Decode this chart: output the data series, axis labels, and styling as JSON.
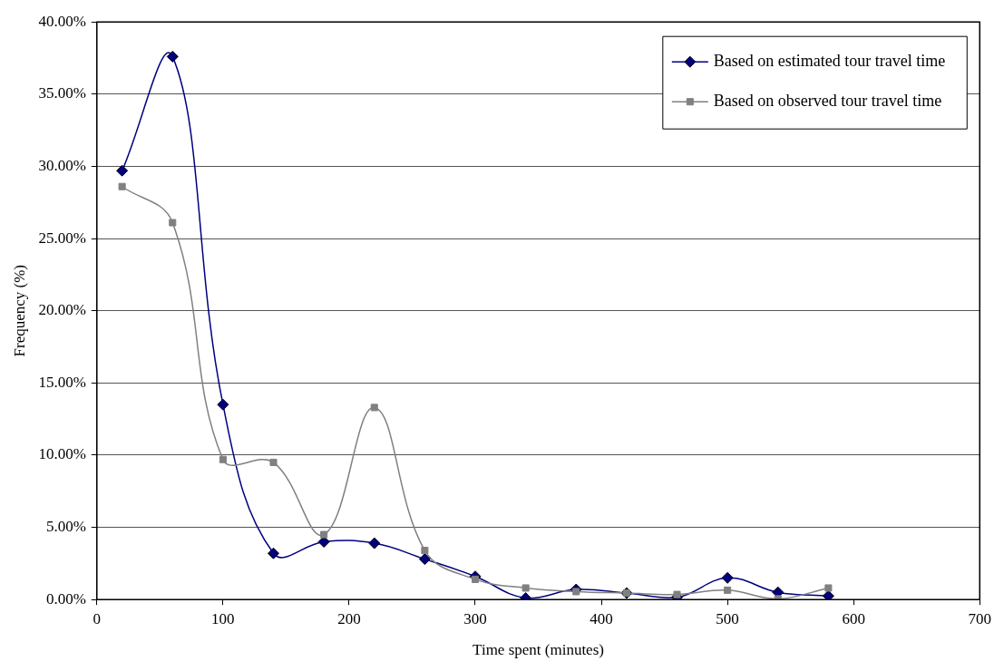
{
  "chart_data": {
    "type": "line",
    "xlabel": "Time spent (minutes)",
    "ylabel": "Frequency (%)",
    "x": [
      20,
      60,
      100,
      140,
      180,
      220,
      260,
      300,
      340,
      380,
      420,
      460,
      500,
      540,
      580
    ],
    "series": [
      {
        "name": "Based on estimated tour travel time",
        "color": "#000080",
        "marker": "diamond",
        "values": [
          29.7,
          37.6,
          13.5,
          3.2,
          4.0,
          3.9,
          2.8,
          1.6,
          0.1,
          0.7,
          0.45,
          0.15,
          1.5,
          0.5,
          0.25
        ]
      },
      {
        "name": "Based on observed tour travel time",
        "color": "#808080",
        "marker": "square",
        "values": [
          28.6,
          26.1,
          9.7,
          9.5,
          4.5,
          13.3,
          3.4,
          1.4,
          0.8,
          0.55,
          0.45,
          0.35,
          0.65,
          0.05,
          0.8
        ]
      }
    ],
    "xlim": [
      0,
      700
    ],
    "xticks": [
      0,
      100,
      200,
      300,
      400,
      500,
      600,
      700
    ],
    "ylim": [
      0,
      40
    ],
    "yticks": [
      {
        "value": 0,
        "label": "0.00%"
      },
      {
        "value": 5,
        "label": "5.00%"
      },
      {
        "value": 10,
        "label": "10.00%"
      },
      {
        "value": 15,
        "label": "15.00%"
      },
      {
        "value": 20,
        "label": "20.00%"
      },
      {
        "value": 25,
        "label": "25.00%"
      },
      {
        "value": 30,
        "label": "30.00%"
      },
      {
        "value": 35,
        "label": "35.00%"
      },
      {
        "value": 40,
        "label": "40.00%"
      }
    ],
    "grid": "y",
    "legend": "top right"
  }
}
